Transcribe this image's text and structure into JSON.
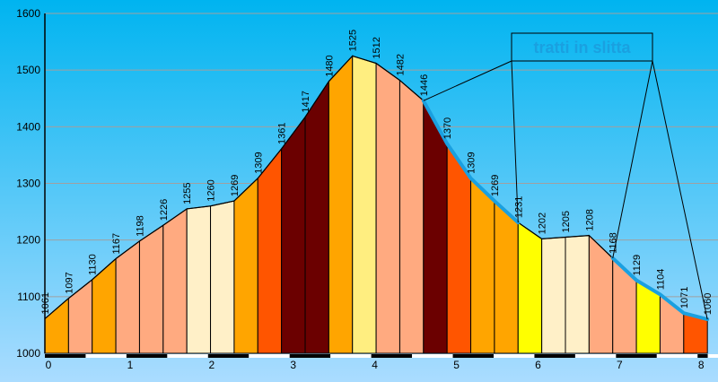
{
  "chart_data": {
    "type": "area",
    "x": [
      0,
      0.29,
      0.58,
      0.87,
      1.16,
      1.45,
      1.74,
      2.03,
      2.32,
      2.61,
      2.9,
      3.19,
      3.48,
      3.77,
      4.06,
      4.35,
      4.64,
      4.93,
      5.22,
      5.51,
      5.8,
      6.09,
      6.38,
      6.67,
      6.96,
      7.25,
      7.54,
      7.83,
      8.12
    ],
    "y": [
      1061,
      1097,
      1130,
      1167,
      1198,
      1226,
      1255,
      1260,
      1269,
      1309,
      1361,
      1417,
      1480,
      1525,
      1512,
      1482,
      1446,
      1370,
      1309,
      1269,
      1231,
      1202,
      1205,
      1208,
      1168,
      1129,
      1104,
      1071,
      1060
    ],
    "labels": [
      "1061",
      "1097",
      "1130",
      "1167",
      "1198",
      "1226",
      "1255",
      "1260",
      "1269",
      "1309",
      "1361",
      "1417",
      "1480",
      "1525",
      "1512",
      "1482",
      "1446",
      "1370",
      "1309",
      "1269",
      "1231",
      "1202",
      "1205",
      "1208",
      "1168",
      "1129",
      "1104",
      "1071",
      "1060"
    ],
    "segment_colors": [
      "#ffa500",
      "#ffaa80",
      "#ffa500",
      "#ffaa80",
      "#ffaa80",
      "#ffaa80",
      "#fff0c8",
      "#fff0c8",
      "#ffa500",
      "#ff5500",
      "#6b0000",
      "#6b0000",
      "#ffa500",
      "#ffee80",
      "#ffaa80",
      "#ffaa80",
      "#6b0000",
      "#ff5500",
      "#ffa500",
      "#ffa500",
      "#ffff00",
      "#fff0c8",
      "#fff0c8",
      "#ffaa80",
      "#ffaa80",
      "#ffff00",
      "#ffaa80",
      "#ff5500"
    ],
    "xlim": [
      0,
      8.25
    ],
    "ylim": [
      1000,
      1600
    ],
    "y_ticks": [
      1000,
      1100,
      1200,
      1300,
      1400,
      1500,
      1600
    ],
    "x_ticks": [
      0,
      1,
      2,
      3,
      4,
      5,
      6,
      7,
      8
    ],
    "grid": true,
    "highlight_ranges": [
      [
        4.64,
        5.8
      ],
      [
        6.96,
        8.12
      ]
    ],
    "annotation": "tratti in slitta",
    "colors": {
      "bg_top": "#00b4f0",
      "bg_bottom": "#aadcff",
      "highlight": "#1aa0e0",
      "grid": "#a0a0a0"
    }
  }
}
